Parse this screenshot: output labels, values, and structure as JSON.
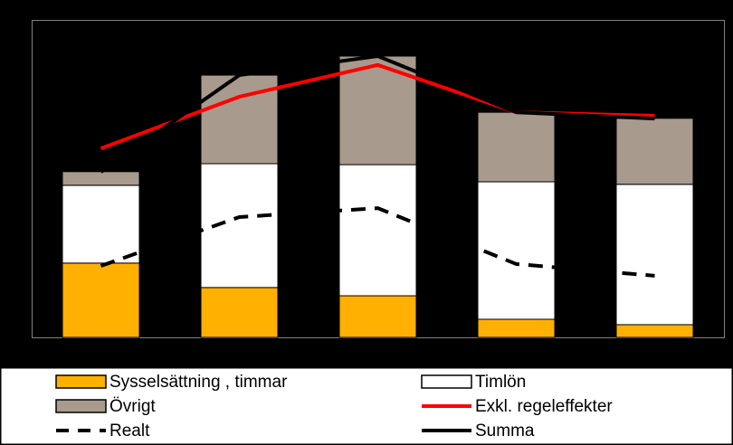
{
  "chart_data": {
    "type": "bar",
    "stacked": true,
    "categories": [
      null,
      null,
      null,
      null,
      null
    ],
    "ylim": [
      0,
      100
    ],
    "series": [
      {
        "name": "Sysselsättning , timmar",
        "type": "bar",
        "color": "#FFB000",
        "values": [
          23.4,
          15.7,
          13.1,
          5.7,
          4.0
        ]
      },
      {
        "name": "Timlön",
        "type": "bar",
        "color": "#FFFFFF",
        "values": [
          24.5,
          39.0,
          41.3,
          43.3,
          44.2
        ]
      },
      {
        "name": "Övrigt",
        "type": "bar",
        "color": "#A89A8C",
        "values": [
          4.3,
          27.9,
          34.2,
          21.9,
          20.8
        ]
      },
      {
        "name": "Exkl. regeleffekter",
        "type": "line",
        "color": "#FF0000",
        "dashed": false,
        "values": [
          59.5,
          75.8,
          85.8,
          70.9,
          69.8
        ]
      },
      {
        "name": "Realt",
        "type": "line",
        "color": "#000000",
        "dashed": true,
        "values": [
          22.5,
          37.9,
          40.7,
          23.1,
          19.4
        ]
      },
      {
        "name": "Summa",
        "type": "line",
        "color": "#000000",
        "dashed": false,
        "values": [
          52.1,
          82.6,
          88.6,
          70.9,
          68.9
        ]
      }
    ]
  }
}
